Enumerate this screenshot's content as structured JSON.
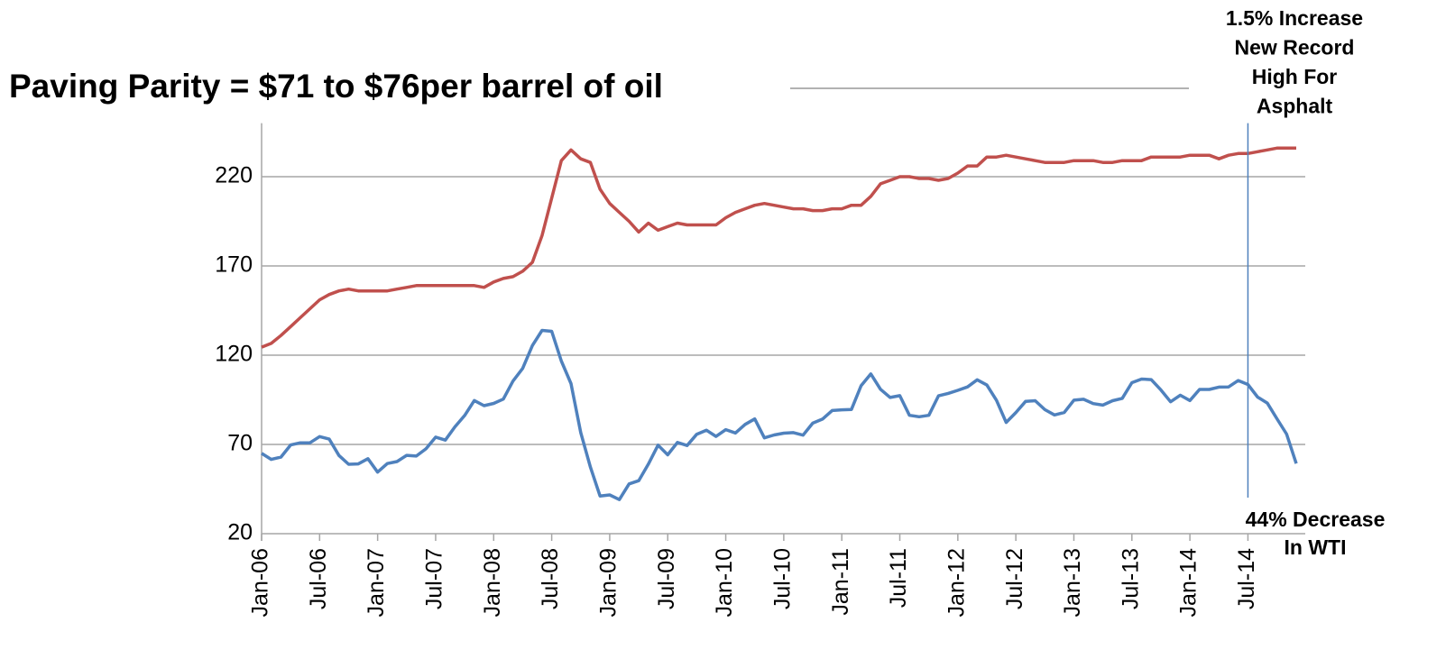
{
  "chart_data": {
    "type": "line",
    "title": "Paving Parity =  $71 to $76per  barrel of oil",
    "annotations": [
      {
        "lines": [
          "1.5% Increase",
          "New Record",
          "High For",
          "Asphalt"
        ]
      },
      {
        "lines": [
          "44% Decrease",
          "In WTI"
        ]
      }
    ],
    "categories": [
      "Jan-06",
      null,
      null,
      null,
      null,
      null,
      "Jul-06",
      null,
      null,
      null,
      null,
      null,
      "Jan-07",
      null,
      null,
      null,
      null,
      null,
      "Jul-07",
      null,
      null,
      null,
      null,
      null,
      "Jan-08",
      null,
      null,
      null,
      null,
      null,
      "Jul-08",
      null,
      null,
      null,
      null,
      null,
      "Jan-09",
      null,
      null,
      null,
      null,
      null,
      "Jul-09",
      null,
      null,
      null,
      null,
      null,
      "Jan-10",
      null,
      null,
      null,
      null,
      null,
      "Jul-10",
      null,
      null,
      null,
      null,
      null,
      "Jan-11",
      null,
      null,
      null,
      null,
      null,
      "Jul-11",
      null,
      null,
      null,
      null,
      null,
      "Jan-12",
      null,
      null,
      null,
      null,
      null,
      "Jul-12",
      null,
      null,
      null,
      null,
      null,
      "Jan-13",
      null,
      null,
      null,
      null,
      null,
      "Jul-13",
      null,
      null,
      null,
      null,
      null,
      "Jan-14",
      null,
      null,
      null,
      null,
      null,
      "Jul-14",
      null,
      null,
      null,
      null,
      null
    ],
    "series": [
      {
        "color": "#c0504d",
        "values": [
          124.5,
          126.6,
          131,
          136,
          141,
          146,
          151,
          154,
          156,
          157,
          156,
          156,
          156,
          156,
          157,
          158,
          159,
          159,
          159,
          159,
          159,
          159,
          159,
          158,
          161,
          163,
          164,
          167,
          172,
          187,
          208,
          229,
          235,
          230,
          228,
          213,
          205,
          200,
          195,
          189,
          194,
          190,
          192,
          194,
          193,
          193,
          193,
          193,
          197,
          200,
          202,
          204,
          205,
          204,
          203,
          202,
          202,
          201,
          201,
          202,
          202,
          204,
          204,
          209,
          216,
          218,
          220,
          220,
          219,
          219,
          218,
          219,
          222,
          226,
          226,
          231,
          231,
          232,
          231,
          230,
          229,
          228,
          228,
          228,
          229,
          229,
          229,
          228,
          228,
          229,
          229,
          229,
          231,
          231,
          231,
          231,
          232,
          232,
          232,
          230,
          232,
          233,
          233,
          234,
          235,
          236,
          236,
          236
        ]
      },
      {
        "color": "#4f81bd",
        "values": [
          65,
          61.6,
          62.9,
          69.7,
          70.9,
          70.9,
          74.4,
          73,
          63.8,
          58.9,
          59.1,
          62,
          54.5,
          59.3,
          60.4,
          63.9,
          63.5,
          67.5,
          74.1,
          72.4,
          79.9,
          86.2,
          94.6,
          91.7,
          93,
          95.4,
          105.5,
          112.6,
          125.4,
          133.9,
          133.4,
          116.7,
          104.1,
          76.6,
          57.3,
          41.1,
          41.7,
          39.1,
          47.9,
          49.7,
          59,
          69.6,
          64.2,
          71.1,
          69.4,
          75.7,
          78,
          74.5,
          78.3,
          76.4,
          81.2,
          84.3,
          73.7,
          75.3,
          76.3,
          76.6,
          75.2,
          81.9,
          84.2,
          89,
          89.4,
          89.6,
          102.9,
          109.5,
          100.9,
          96.3,
          97.3,
          86.3,
          85.5,
          86.3,
          97.2,
          98.6,
          100.3,
          102.2,
          106.2,
          103.3,
          94.7,
          82.3,
          87.9,
          94.1,
          94.5,
          89.5,
          86.5,
          87.9,
          94.8,
          95.3,
          92.9,
          92,
          94.5,
          95.8,
          104.6,
          106.6,
          106.3,
          100.5,
          93.9,
          97.6,
          94.6,
          100.8,
          100.8,
          102.1,
          102.2,
          105.8,
          103.6,
          96.5,
          93.2,
          84.4,
          75.8,
          59.3
        ]
      }
    ],
    "ylim": [
      20,
      250
    ],
    "yticks": [
      20,
      70,
      120,
      170,
      220
    ],
    "grid": true
  }
}
